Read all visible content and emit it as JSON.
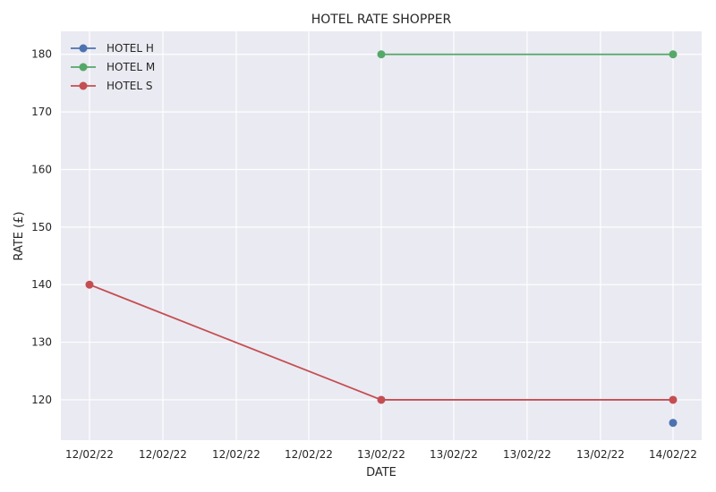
{
  "chart_data": {
    "type": "line",
    "title": "HOTEL RATE SHOPPER",
    "xlabel": "DATE",
    "ylabel": "RATE (£)",
    "x_ticks": [
      "12/02/22",
      "12/02/22",
      "12/02/22",
      "12/02/22",
      "13/02/22",
      "13/02/22",
      "13/02/22",
      "13/02/22",
      "14/02/22"
    ],
    "x": [
      "12/02/22",
      "13/02/22",
      "14/02/22"
    ],
    "ylim": [
      113,
      184
    ],
    "yticks": [
      120,
      130,
      140,
      150,
      160,
      170,
      180
    ],
    "grid": true,
    "legend_position": "top-left",
    "series": [
      {
        "name": "HOTEL H",
        "color": "#4c72b0",
        "values": [
          null,
          null,
          116
        ]
      },
      {
        "name": "HOTEL M",
        "color": "#55a868",
        "values": [
          null,
          180,
          180
        ]
      },
      {
        "name": "HOTEL S",
        "color": "#c44e52",
        "values": [
          140,
          120,
          120
        ]
      }
    ],
    "colors": {
      "plot_background": "#eaeaf2",
      "grid": "#ffffff"
    }
  }
}
